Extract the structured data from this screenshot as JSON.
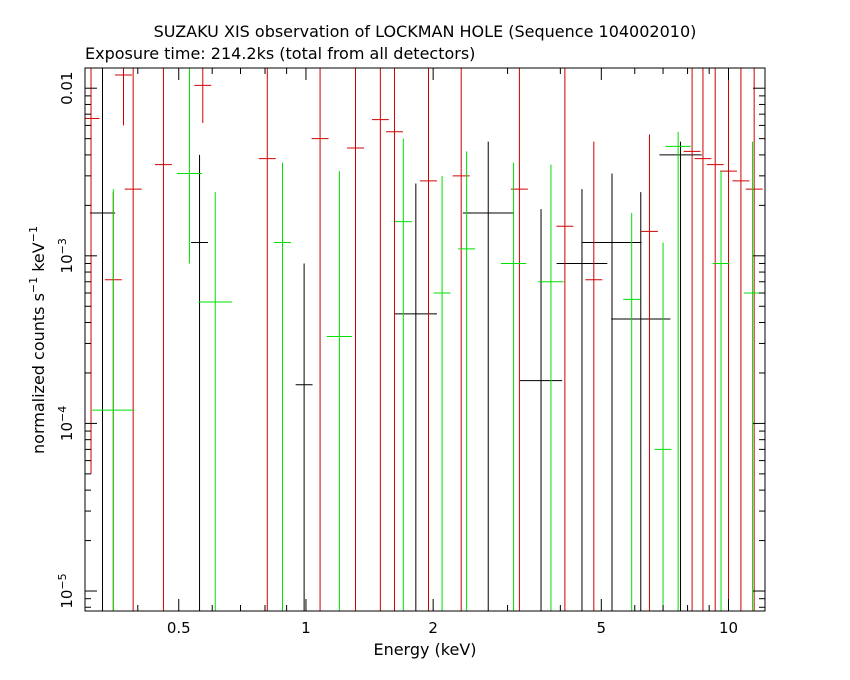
{
  "chart_data": {
    "type": "scatter",
    "title": "SUZAKU XIS observation of LOCKMAN HOLE (Sequence 104002010)",
    "subtitle": "Exposure time: 214.2ks (total from all detectors)",
    "xlabel": "Energy (keV)",
    "ylabel_parts": {
      "main": "normalized counts s",
      "exp1": "−1",
      "mid": " keV",
      "exp2": "−1"
    },
    "x_scale": "log",
    "y_scale": "log",
    "xlim": [
      0.3,
      12.2
    ],
    "ylim": [
      7.6e-06,
      0.0132
    ],
    "grid": false,
    "x_ticks": [
      {
        "value": 0.5,
        "label": "0.5"
      },
      {
        "value": 1,
        "label": "1"
      },
      {
        "value": 2,
        "label": "2"
      },
      {
        "value": 5,
        "label": "5"
      },
      {
        "value": 10,
        "label": "10"
      }
    ],
    "x_minor_ticks": [
      0.3,
      0.4,
      0.6,
      0.7,
      0.8,
      0.9,
      3,
      4,
      6,
      7,
      8,
      9
    ],
    "y_ticks": [
      {
        "value": 0.01,
        "mant": "0.01",
        "exp": ""
      },
      {
        "value": 0.001,
        "mant": "10",
        "exp": "−3"
      },
      {
        "value": 0.0001,
        "mant": "10",
        "exp": "−4"
      },
      {
        "value": 1e-05,
        "mant": "10",
        "exp": "−5"
      }
    ],
    "series": [
      {
        "color": "#000000",
        "points": [
          [
            0.33,
            0.0018,
            0.03,
            0.0132,
            7.6e-06
          ],
          [
            0.56,
            0.0012,
            0.02,
            0.004,
            7.6e-06
          ],
          [
            0.99,
            0.00017,
            0.02,
            0.0009,
            7.6e-06
          ],
          [
            1.82,
            0.00045,
            0.05,
            0.0027,
            7.6e-06
          ],
          [
            2.7,
            0.0018,
            0.06,
            0.0048,
            7.6e-06
          ],
          [
            3.6,
            0.00018,
            0.05,
            0.0019,
            7.6e-06
          ],
          [
            4.5,
            0.0009,
            0.06,
            0.0025,
            7.6e-06
          ],
          [
            5.3,
            0.0012,
            0.07,
            0.0031,
            7.6e-06
          ],
          [
            6.2,
            0.00042,
            0.07,
            0.0024,
            7.6e-06
          ],
          [
            7.7,
            0.004,
            0.05,
            0.0048,
            7.6e-06
          ]
        ]
      },
      {
        "color": "#d00000",
        "points": [
          [
            0.31,
            0.0066,
            0.02,
            0.0132,
            5e-05
          ],
          [
            0.35,
            0.00072,
            0.02,
            0.0024,
            7.6e-06
          ],
          [
            0.37,
            0.012,
            0.02,
            0.0132,
            0.006
          ],
          [
            0.39,
            0.0025,
            0.02,
            0.0132,
            7.6e-06
          ],
          [
            0.46,
            0.0035,
            0.02,
            0.0132,
            7.6e-06
          ],
          [
            0.57,
            0.0104,
            0.02,
            0.0132,
            0.0062
          ],
          [
            0.81,
            0.0038,
            0.02,
            0.0132,
            7.6e-06
          ],
          [
            1.08,
            0.005,
            0.02,
            0.0132,
            7.6e-06
          ],
          [
            1.31,
            0.0044,
            0.02,
            0.0132,
            7.6e-06
          ],
          [
            1.5,
            0.0065,
            0.02,
            0.0132,
            7.6e-06
          ],
          [
            1.62,
            0.0055,
            0.02,
            0.0132,
            7.6e-06
          ],
          [
            1.95,
            0.0028,
            0.02,
            0.0132,
            7.6e-06
          ],
          [
            2.33,
            0.003,
            0.02,
            0.0132,
            7.6e-06
          ],
          [
            3.2,
            0.0025,
            0.02,
            0.0132,
            7.6e-06
          ],
          [
            4.1,
            0.0015,
            0.02,
            0.0132,
            7.6e-06
          ],
          [
            4.8,
            0.00072,
            0.02,
            0.0048,
            7.6e-06
          ],
          [
            6.5,
            0.0014,
            0.02,
            0.0053,
            7.6e-06
          ],
          [
            8.2,
            0.0042,
            0.02,
            0.0132,
            7.6e-06
          ],
          [
            8.7,
            0.0038,
            0.02,
            0.0132,
            7.6e-06
          ],
          [
            9.3,
            0.0035,
            0.02,
            0.0132,
            7.6e-06
          ],
          [
            10,
            0.0032,
            0.02,
            0.0132,
            7.6e-06
          ],
          [
            10.7,
            0.0028,
            0.02,
            0.0132,
            7.6e-06
          ],
          [
            11.5,
            0.0025,
            0.02,
            0.0132,
            7.6e-06
          ]
        ]
      },
      {
        "color": "#00e000",
        "points": [
          [
            0.35,
            0.00012,
            0.05,
            0.0025,
            7.6e-06
          ],
          [
            0.53,
            0.0031,
            0.03,
            0.0132,
            0.0009
          ],
          [
            0.61,
            0.00053,
            0.04,
            0.0024,
            7.6e-06
          ],
          [
            0.88,
            0.0012,
            0.02,
            0.0036,
            7.6e-06
          ],
          [
            1.2,
            0.00033,
            0.03,
            0.0032,
            7.6e-06
          ],
          [
            1.7,
            0.0016,
            0.02,
            0.005,
            7.6e-06
          ],
          [
            2.1,
            0.0006,
            0.02,
            0.003,
            7.6e-06
          ],
          [
            2.4,
            0.0011,
            0.02,
            0.0042,
            7.6e-06
          ],
          [
            3.1,
            0.0009,
            0.03,
            0.0036,
            7.6e-06
          ],
          [
            3.8,
            0.0007,
            0.03,
            0.0035,
            7.6e-06
          ],
          [
            5.9,
            0.00055,
            0.02,
            0.0018,
            7.6e-06
          ],
          [
            7.0,
            7e-05,
            0.02,
            0.0012,
            7.6e-06
          ],
          [
            7.6,
            0.0045,
            0.03,
            0.0055,
            7.6e-06
          ],
          [
            9.6,
            0.0009,
            0.02,
            0.0032,
            7.6e-06
          ],
          [
            11.4,
            0.0006,
            0.02,
            0.0048,
            7.6e-06
          ]
        ]
      }
    ]
  }
}
